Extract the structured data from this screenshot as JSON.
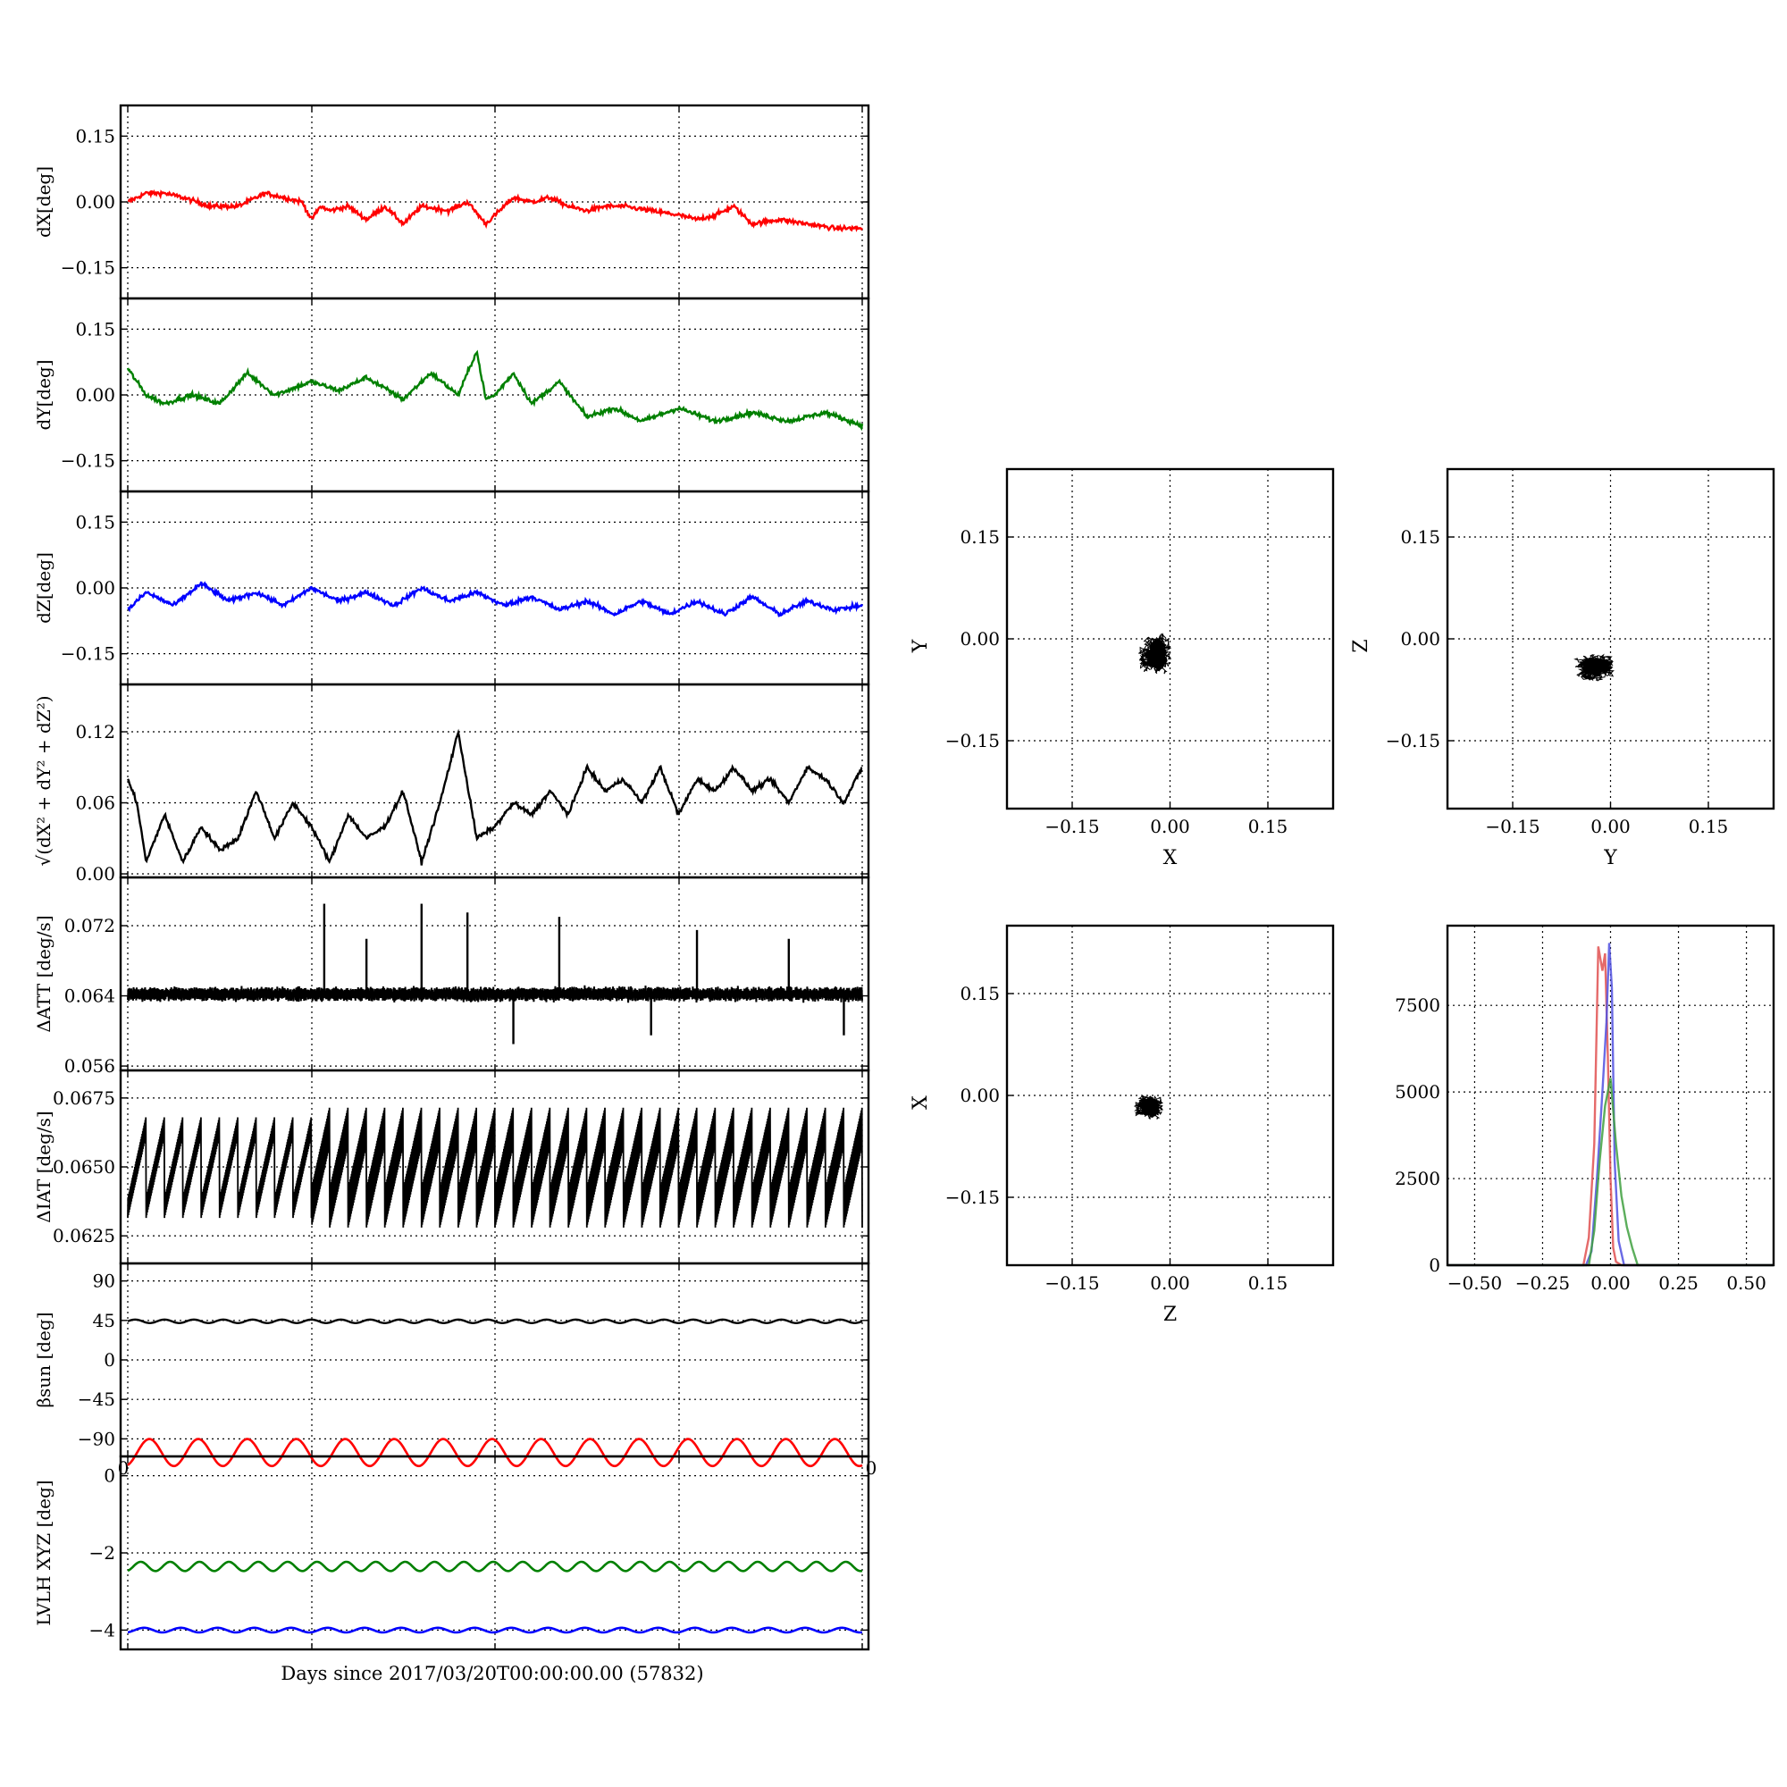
{
  "figure": {
    "xlabel_bottom": "Days since 2017/03/20T00:00:00.00 (57832)"
  },
  "chart_data": [
    {
      "id": "dX",
      "type": "line",
      "ylabel": "dX[deg]",
      "ylim": [
        -0.22,
        0.22
      ],
      "yticks": [
        0.15,
        0.0,
        -0.15
      ],
      "ytick_labels": [
        "0.15",
        "0.00",
        "−0.15"
      ],
      "xlim": [
        0,
        4
      ],
      "grid": true,
      "color": "#ff0000",
      "series": [
        {
          "x": [
            0,
            0.1,
            0.2,
            0.3,
            0.45,
            0.6,
            0.75,
            0.85,
            0.95,
            1.0,
            1.05,
            1.1,
            1.2,
            1.3,
            1.4,
            1.5,
            1.6,
            1.75,
            1.85,
            1.95,
            2.1,
            2.2,
            2.3,
            2.4,
            2.5,
            2.6,
            2.7,
            2.85,
            3.0,
            3.1,
            3.2,
            3.3,
            3.4,
            3.55,
            3.7,
            3.85,
            4.0
          ],
          "y": [
            0.0,
            0.02,
            0.02,
            0.01,
            -0.01,
            -0.01,
            0.02,
            0.01,
            0.0,
            -0.04,
            -0.01,
            -0.02,
            -0.01,
            -0.04,
            -0.01,
            -0.05,
            -0.01,
            -0.02,
            0.0,
            -0.05,
            0.01,
            0.0,
            0.01,
            -0.01,
            -0.02,
            -0.01,
            -0.01,
            -0.02,
            -0.03,
            -0.04,
            -0.03,
            -0.01,
            -0.05,
            -0.04,
            -0.05,
            -0.06,
            -0.06
          ]
        }
      ]
    },
    {
      "id": "dY",
      "type": "line",
      "ylabel": "dY[deg]",
      "ylim": [
        -0.22,
        0.22
      ],
      "yticks": [
        0.15,
        0.0,
        -0.15
      ],
      "ytick_labels": [
        "0.15",
        "0.00",
        "−0.15"
      ],
      "xlim": [
        0,
        4
      ],
      "grid": true,
      "color": "#008000",
      "series": [
        {
          "x": [
            0,
            0.1,
            0.2,
            0.35,
            0.5,
            0.65,
            0.8,
            1.0,
            1.15,
            1.3,
            1.5,
            1.65,
            1.8,
            1.9,
            1.95,
            2.0,
            2.1,
            2.2,
            2.35,
            2.5,
            2.65,
            2.8,
            3.0,
            3.2,
            3.4,
            3.6,
            3.8,
            4.0
          ],
          "y": [
            0.06,
            0.0,
            -0.02,
            0.0,
            -0.02,
            0.05,
            0.0,
            0.03,
            0.01,
            0.04,
            -0.01,
            0.05,
            0.0,
            0.1,
            -0.01,
            0.0,
            0.05,
            -0.02,
            0.03,
            -0.05,
            -0.03,
            -0.06,
            -0.03,
            -0.06,
            -0.04,
            -0.06,
            -0.04,
            -0.07
          ]
        }
      ]
    },
    {
      "id": "dZ",
      "type": "line",
      "ylabel": "dZ[deg]",
      "ylim": [
        -0.22,
        0.22
      ],
      "yticks": [
        0.15,
        0.0,
        -0.15
      ],
      "ytick_labels": [
        "0.15",
        "0.00",
        "−0.15"
      ],
      "xlim": [
        0,
        4
      ],
      "grid": true,
      "color": "#0000ff",
      "series": [
        {
          "x": [
            0,
            0.1,
            0.25,
            0.4,
            0.55,
            0.7,
            0.85,
            1.0,
            1.15,
            1.3,
            1.45,
            1.6,
            1.75,
            1.9,
            2.05,
            2.2,
            2.35,
            2.5,
            2.65,
            2.8,
            2.95,
            3.1,
            3.25,
            3.4,
            3.55,
            3.7,
            3.85,
            4.0
          ],
          "y": [
            -0.05,
            -0.01,
            -0.04,
            0.01,
            -0.03,
            -0.01,
            -0.04,
            0.0,
            -0.03,
            -0.01,
            -0.04,
            0.0,
            -0.03,
            -0.01,
            -0.04,
            -0.02,
            -0.05,
            -0.03,
            -0.06,
            -0.03,
            -0.06,
            -0.03,
            -0.06,
            -0.02,
            -0.06,
            -0.03,
            -0.05,
            -0.04
          ]
        }
      ]
    },
    {
      "id": "norm",
      "type": "line",
      "ylabel": "√(dX² + dY² + dZ²)",
      "ylim": [
        -0.003,
        0.16
      ],
      "yticks": [
        0.12,
        0.06,
        0.0
      ],
      "ytick_labels": [
        "0.12",
        "0.06",
        "0.00"
      ],
      "xlim": [
        0,
        4
      ],
      "grid": true,
      "color": "#000000",
      "series": [
        {
          "x": [
            0,
            0.05,
            0.1,
            0.2,
            0.3,
            0.4,
            0.5,
            0.6,
            0.7,
            0.8,
            0.9,
            1.0,
            1.1,
            1.2,
            1.3,
            1.4,
            1.5,
            1.6,
            1.7,
            1.8,
            1.9,
            2.0,
            2.1,
            2.2,
            2.3,
            2.4,
            2.5,
            2.6,
            2.7,
            2.8,
            2.9,
            3.0,
            3.1,
            3.2,
            3.3,
            3.4,
            3.5,
            3.6,
            3.7,
            3.8,
            3.9,
            4.0
          ],
          "y": [
            0.08,
            0.06,
            0.01,
            0.05,
            0.01,
            0.04,
            0.02,
            0.03,
            0.07,
            0.03,
            0.06,
            0.04,
            0.01,
            0.05,
            0.03,
            0.04,
            0.07,
            0.01,
            0.06,
            0.12,
            0.03,
            0.04,
            0.06,
            0.05,
            0.07,
            0.05,
            0.09,
            0.07,
            0.08,
            0.06,
            0.09,
            0.05,
            0.08,
            0.07,
            0.09,
            0.07,
            0.08,
            0.06,
            0.09,
            0.08,
            0.06,
            0.09
          ]
        }
      ]
    },
    {
      "id": "dATT",
      "type": "line",
      "ylabel": "ΔATT [deg/s]",
      "ylim": [
        0.0555,
        0.0775
      ],
      "yticks": [
        0.072,
        0.064,
        0.056
      ],
      "ytick_labels": [
        "0.072",
        "0.064",
        "0.056"
      ],
      "xlim": [
        0,
        4
      ],
      "grid": true,
      "color": "#000000",
      "baseline": 0.0642,
      "spikes": [
        {
          "x": 1.07,
          "y": 0.0745
        },
        {
          "x": 1.3,
          "y": 0.0705
        },
        {
          "x": 1.6,
          "y": 0.0745
        },
        {
          "x": 1.85,
          "y": 0.0735
        },
        {
          "x": 2.1,
          "y": 0.0585
        },
        {
          "x": 2.35,
          "y": 0.073
        },
        {
          "x": 2.85,
          "y": 0.0595
        },
        {
          "x": 3.1,
          "y": 0.0715
        },
        {
          "x": 3.6,
          "y": 0.0705
        },
        {
          "x": 3.9,
          "y": 0.0595
        }
      ]
    },
    {
      "id": "dIAT",
      "type": "line",
      "ylabel": "ΔIAT [deg/s]",
      "ylim": [
        0.0615,
        0.0685
      ],
      "yticks": [
        0.0675,
        0.065,
        0.0625
      ],
      "ytick_labels": [
        "0.0675",
        "0.0650",
        "0.0625"
      ],
      "xlim": [
        0,
        4
      ],
      "grid": true,
      "color": "#000000",
      "sawtooth": {
        "periods": 40,
        "low": 0.0635,
        "high": 0.0665
      }
    },
    {
      "id": "beta",
      "type": "line",
      "ylabel": "βsun [deg]",
      "ylim": [
        -110,
        110
      ],
      "yticks": [
        90,
        45,
        0,
        -45,
        -90
      ],
      "ytick_labels": [
        "90",
        "45",
        "0",
        "−45",
        "−90"
      ],
      "xlim": [
        0,
        4
      ],
      "grid": true,
      "color": "#000000",
      "series": [
        {
          "name": "",
          "mean": 44,
          "amplitude": 2,
          "cycles": 25
        }
      ]
    },
    {
      "id": "lvlh",
      "type": "line",
      "ylabel": "LVLH XYZ [deg]",
      "ylim": [
        -4.5,
        0.5
      ],
      "yticks": [
        0,
        -2,
        -4
      ],
      "ytick_labels": [
        "0",
        "−2",
        "−4"
      ],
      "xlim": [
        0,
        4
      ],
      "grid": true,
      "xtick_labels": [
        "0",
        "",
        "",
        "",
        "0"
      ],
      "series": [
        {
          "color": "#ff0000",
          "mean": 0.6,
          "amplitude": 0.35,
          "cycles": 15
        },
        {
          "color": "#008000",
          "mean": -2.35,
          "amplitude": 0.12,
          "cycles": 25
        },
        {
          "color": "#0000ff",
          "mean": -4.0,
          "amplitude": 0.06,
          "cycles": 20
        }
      ]
    },
    {
      "id": "XY",
      "type": "scatter",
      "xlabel": "X",
      "ylabel": "Y",
      "xlim": [
        -0.25,
        0.25
      ],
      "ylim": [
        -0.25,
        0.25
      ],
      "ticks": [
        -0.15,
        0.0,
        0.15
      ],
      "tick_labels": [
        "−0.15",
        "0.00",
        "0.15"
      ],
      "grid": true,
      "color": "#000000",
      "cloud": {
        "cx": -0.02,
        "cy": -0.02,
        "sx": 0.045,
        "sy": 0.055
      }
    },
    {
      "id": "YZ",
      "type": "scatter",
      "xlabel": "Y",
      "ylabel": "Z",
      "xlim": [
        -0.25,
        0.25
      ],
      "ylim": [
        -0.25,
        0.25
      ],
      "ticks": [
        -0.15,
        0.0,
        0.15
      ],
      "tick_labels": [
        "−0.15",
        "0.00",
        "0.15"
      ],
      "grid": true,
      "color": "#000000",
      "cloud": {
        "cx": -0.02,
        "cy": -0.04,
        "sx": 0.06,
        "sy": 0.035
      }
    },
    {
      "id": "ZX",
      "type": "scatter",
      "xlabel": "Z",
      "ylabel": "X",
      "xlim": [
        -0.25,
        0.25
      ],
      "ylim": [
        -0.25,
        0.25
      ],
      "ticks": [
        -0.15,
        0.0,
        0.15
      ],
      "tick_labels": [
        "−0.15",
        "0.00",
        "0.15"
      ],
      "grid": true,
      "color": "#000000",
      "cloud": {
        "cx": -0.03,
        "cy": -0.015,
        "sx": 0.04,
        "sy": 0.035
      }
    },
    {
      "id": "hist",
      "type": "line",
      "xlim": [
        -0.6,
        0.6
      ],
      "ylim": [
        0,
        9800
      ],
      "xticks": [
        -0.5,
        -0.25,
        0.0,
        0.25,
        0.5
      ],
      "xtick_labels": [
        "−0.50",
        "−0.25",
        "0.00",
        "0.25",
        "0.50"
      ],
      "yticks": [
        0,
        2500,
        5000,
        7500
      ],
      "ytick_labels": [
        "0",
        "2500",
        "5000",
        "7500"
      ],
      "grid": true,
      "series": [
        {
          "color": "#e05050",
          "x": [
            -0.6,
            -0.1,
            -0.08,
            -0.06,
            -0.045,
            -0.03,
            -0.02,
            -0.01,
            0.0,
            0.01,
            0.02,
            0.04,
            0.6
          ],
          "y": [
            0,
            0,
            800,
            3500,
            9200,
            8500,
            9000,
            6000,
            2500,
            500,
            100,
            0,
            0
          ]
        },
        {
          "color": "#5050e0",
          "x": [
            -0.6,
            -0.09,
            -0.07,
            -0.05,
            -0.03,
            -0.015,
            -0.005,
            0.005,
            0.015,
            0.03,
            0.05,
            0.6
          ],
          "y": [
            0,
            0,
            400,
            2500,
            5000,
            7000,
            9300,
            8000,
            3000,
            700,
            0,
            0
          ]
        },
        {
          "color": "#40a040",
          "x": [
            -0.6,
            -0.08,
            -0.06,
            -0.04,
            -0.02,
            0.0,
            0.02,
            0.04,
            0.06,
            0.08,
            0.1,
            0.6
          ],
          "y": [
            0,
            0,
            1000,
            3000,
            4600,
            5400,
            3500,
            2000,
            1100,
            500,
            0,
            0
          ]
        }
      ]
    }
  ]
}
